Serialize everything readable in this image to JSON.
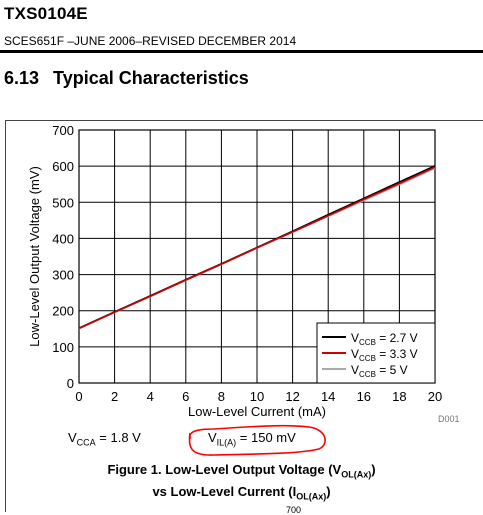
{
  "header": {
    "part": "TXS0104E",
    "doc_line": "SCES651F –JUNE 2006–REVISED DECEMBER 2014",
    "section_number": "6.13",
    "section_title": "Typical Characteristics"
  },
  "conditions": {
    "vcca_prefix": "V",
    "vcca_sub": "CCA",
    "vcca_value": " = 1.8 V",
    "vil_prefix": "V",
    "vil_sub": "IL(A)",
    "vil_value": " = 150 mV"
  },
  "figure": {
    "id": "D001",
    "caption_line1_prefix": "Figure 1. Low-Level Output Voltage (V",
    "caption_line1_sub": "OL(Ax)",
    "caption_line1_suffix": ")",
    "caption_line2_prefix": "vs Low-Level Current (I",
    "caption_line2_sub": "OL(Ax)",
    "caption_line2_suffix": ")",
    "annotation_color": "#ff0000",
    "bottom_partial_text": "700"
  },
  "chart_data": {
    "type": "line",
    "xlabel": "Low-Level Current (mA)",
    "ylabel": "Low-Level Output Voltage (mV)",
    "xlim": [
      0,
      20
    ],
    "ylim": [
      0,
      700
    ],
    "xticks": [
      0,
      2,
      4,
      6,
      8,
      10,
      12,
      14,
      16,
      18,
      20
    ],
    "yticks": [
      0,
      100,
      200,
      300,
      400,
      500,
      600,
      700
    ],
    "grid": true,
    "legend_position": "bottom-right",
    "series": [
      {
        "name_prefix": "V",
        "name_sub": "CCB",
        "name_value": " = 2.7 V",
        "color": "#000000",
        "x": [
          0,
          2,
          4,
          6,
          8,
          10,
          12,
          14,
          16,
          18,
          20
        ],
        "y": [
          152,
          197,
          241,
          286,
          330,
          375,
          420,
          466,
          511,
          556,
          601
        ]
      },
      {
        "name_prefix": "V",
        "name_sub": "CCB",
        "name_value": " = 3.3 V",
        "color": "#cc0000",
        "x": [
          0,
          2,
          4,
          6,
          8,
          10,
          12,
          14,
          16,
          18,
          20
        ],
        "y": [
          151,
          196,
          240,
          285,
          329,
          374,
          418,
          463,
          508,
          552,
          597
        ]
      },
      {
        "name_prefix": "V",
        "name_sub": "CCB",
        "name_value": " = 5 V",
        "color": "#aaaaaa",
        "x": [
          0,
          2,
          4,
          6,
          8,
          10,
          12,
          14,
          16,
          18,
          20
        ],
        "y": [
          150,
          195,
          239,
          284,
          328,
          373,
          417,
          461,
          505,
          549,
          594
        ]
      }
    ]
  }
}
